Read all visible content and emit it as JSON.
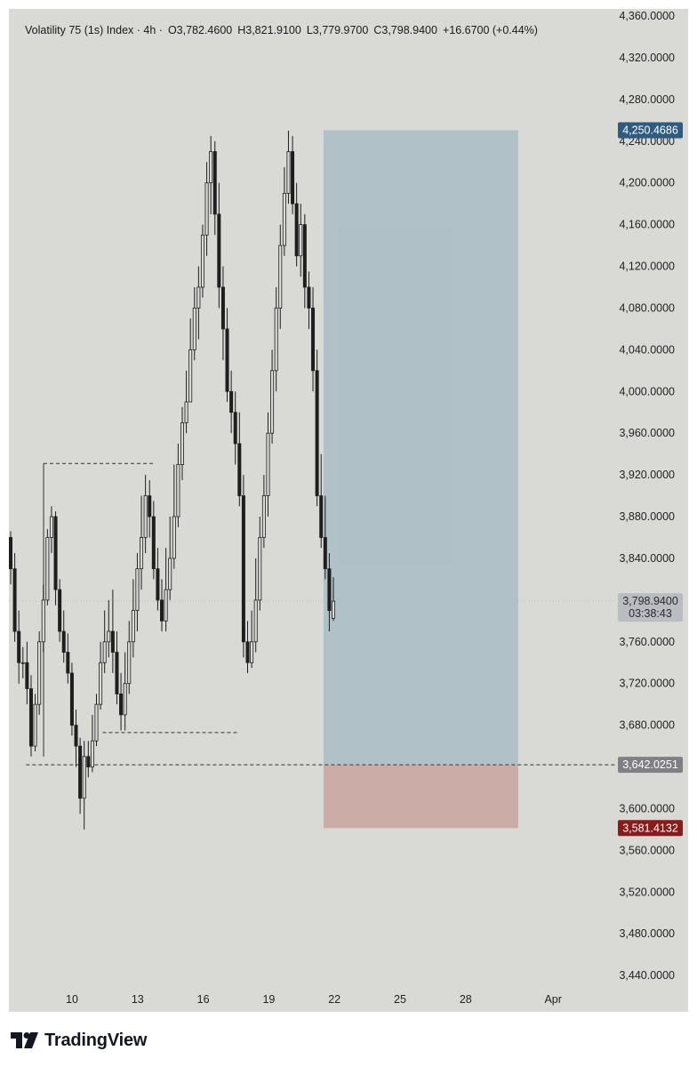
{
  "header": {
    "symbol": "Volatility 75 (1s) Index · 4h ·",
    "open": "O3,782.4600",
    "high": "H3,821.9100",
    "low": "L3,779.9700",
    "close": "C3,798.9400",
    "change": "+16.6700 (+0.44%)"
  },
  "footer": {
    "brand": "TradingView"
  },
  "colors": {
    "background": "#d9d9d5",
    "candle": "#1e1e1e",
    "profit_zone": "#a8bcc4",
    "loss_zone": "#c9a6a2",
    "target_label": "#2e5b80",
    "stop_label": "#8b1a1a",
    "entry_label": "#7f7f84",
    "price_label": "#b9bcc3"
  },
  "chart_data": {
    "type": "candlestick",
    "instrument": "Volatility 75 (1s) Index",
    "timeframe": "4h",
    "ylim": [
      3420,
      4370
    ],
    "y_ticks": [
      "4,360.0000",
      "4,320.0000",
      "4,280.0000",
      "4,240.0000",
      "4,200.0000",
      "4,160.0000",
      "4,120.0000",
      "4,080.0000",
      "4,040.0000",
      "4,000.0000",
      "3,960.0000",
      "3,920.0000",
      "3,880.0000",
      "3,840.0000",
      "3,760.0000",
      "3,720.0000",
      "3,680.0000",
      "3,600.0000",
      "3,560.0000",
      "3,520.0000",
      "3,480.0000",
      "3,440.0000"
    ],
    "y_tick_values": [
      4360,
      4320,
      4280,
      4240,
      4200,
      4160,
      4120,
      4080,
      4040,
      4000,
      3960,
      3920,
      3880,
      3840,
      3760,
      3720,
      3680,
      3600,
      3560,
      3520,
      3480,
      3440
    ],
    "x_ticks": [
      "10",
      "13",
      "16",
      "19",
      "22",
      "25",
      "28",
      "Apr"
    ],
    "x_tick_days": [
      10,
      13,
      16,
      19,
      22,
      25,
      28,
      32
    ],
    "current_price": {
      "price": 3798.94,
      "label": "3,798.9400",
      "countdown": "03:38:43"
    },
    "position": {
      "entry": 3642.0251,
      "entry_label": "3,642.0251",
      "target": 4250.4686,
      "target_label": "4,250.4686",
      "stop": 3581.4132,
      "stop_label": "3,581.4132",
      "start_day": 21.5,
      "end_day": 30.4
    },
    "levels": [
      {
        "price": 3931,
        "from_day": 8.7,
        "to_day": 13.8
      },
      {
        "price": 3673,
        "from_day": 11.4,
        "to_day": 17.6
      },
      {
        "price": 3642.0251,
        "from_day": 7.9,
        "to_day": 30.4
      }
    ],
    "candles_ohlc": [
      [
        3860,
        3830,
        3866,
        3815
      ],
      [
        3830,
        3770,
        3845,
        3760
      ],
      [
        3770,
        3740,
        3790,
        3720
      ],
      [
        3740,
        3740,
        3755,
        3725
      ],
      [
        3740,
        3715,
        3760,
        3700
      ],
      [
        3715,
        3660,
        3728,
        3650
      ],
      [
        3660,
        3700,
        3710,
        3655
      ],
      [
        3700,
        3760,
        3770,
        3690
      ],
      [
        3760,
        3800,
        3815,
        3750
      ],
      [
        3800,
        3860,
        3868,
        3795
      ],
      [
        3860,
        3880,
        3890,
        3845
      ],
      [
        3880,
        3810,
        3885,
        3795
      ],
      [
        3810,
        3770,
        3820,
        3760
      ],
      [
        3770,
        3750,
        3790,
        3740
      ],
      [
        3750,
        3730,
        3768,
        3720
      ],
      [
        3730,
        3680,
        3740,
        3670
      ],
      [
        3680,
        3660,
        3695,
        3640
      ],
      [
        3660,
        3610,
        3668,
        3595
      ],
      [
        3610,
        3650,
        3665,
        3580
      ],
      [
        3650,
        3640,
        3665,
        3630
      ],
      [
        3640,
        3665,
        3690,
        3635
      ],
      [
        3665,
        3700,
        3710,
        3660
      ],
      [
        3700,
        3740,
        3760,
        3695
      ],
      [
        3740,
        3760,
        3790,
        3730
      ],
      [
        3760,
        3770,
        3800,
        3745
      ],
      [
        3770,
        3750,
        3810,
        3730
      ],
      [
        3750,
        3710,
        3770,
        3700
      ],
      [
        3710,
        3690,
        3730,
        3675
      ],
      [
        3690,
        3720,
        3750,
        3675
      ],
      [
        3720,
        3760,
        3780,
        3710
      ],
      [
        3760,
        3790,
        3820,
        3745
      ],
      [
        3790,
        3830,
        3845,
        3770
      ],
      [
        3830,
        3860,
        3900,
        3810
      ],
      [
        3860,
        3900,
        3920,
        3845
      ],
      [
        3900,
        3880,
        3915,
        3860
      ],
      [
        3880,
        3830,
        3895,
        3820
      ],
      [
        3830,
        3800,
        3850,
        3790
      ],
      [
        3800,
        3780,
        3820,
        3770
      ],
      [
        3780,
        3810,
        3850,
        3770
      ],
      [
        3810,
        3840,
        3880,
        3800
      ],
      [
        3840,
        3880,
        3930,
        3830
      ],
      [
        3880,
        3930,
        3950,
        3870
      ],
      [
        3930,
        3970,
        3985,
        3915
      ],
      [
        3970,
        3990,
        4020,
        3960
      ],
      [
        3990,
        4040,
        4070,
        4000
      ],
      [
        4040,
        4080,
        4100,
        4030
      ],
      [
        4080,
        4100,
        4120,
        4050
      ],
      [
        4100,
        4150,
        4160,
        4090
      ],
      [
        4150,
        4200,
        4220,
        4130
      ],
      [
        4200,
        4230,
        4245,
        4170
      ],
      [
        4230,
        4170,
        4240,
        4150
      ],
      [
        4170,
        4100,
        4200,
        4080
      ],
      [
        4100,
        4060,
        4120,
        4030
      ],
      [
        4060,
        4000,
        4080,
        3990
      ],
      [
        4000,
        3980,
        4020,
        3960
      ],
      [
        3980,
        3950,
        4000,
        3930
      ],
      [
        3950,
        3900,
        3980,
        3890
      ],
      [
        3900,
        3760,
        3920,
        3745
      ],
      [
        3760,
        3740,
        3780,
        3730
      ],
      [
        3740,
        3760,
        3790,
        3735
      ],
      [
        3760,
        3800,
        3840,
        3750
      ],
      [
        3800,
        3860,
        3880,
        3790
      ],
      [
        3860,
        3900,
        3920,
        3850
      ],
      [
        3900,
        3960,
        3980,
        3880
      ],
      [
        3960,
        4020,
        4040,
        3950
      ],
      [
        4020,
        4080,
        4100,
        4000
      ],
      [
        4080,
        4140,
        4160,
        4060
      ],
      [
        4140,
        4190,
        4215,
        4130
      ],
      [
        4190,
        4230,
        4250,
        4180
      ],
      [
        4230,
        4180,
        4245,
        4170
      ],
      [
        4180,
        4130,
        4200,
        4120
      ],
      [
        4130,
        4160,
        4180,
        4110
      ],
      [
        4160,
        4100,
        4170,
        4080
      ],
      [
        4100,
        4080,
        4115,
        4060
      ],
      [
        4080,
        4020,
        4100,
        4000
      ],
      [
        4020,
        3900,
        4040,
        3890
      ],
      [
        3900,
        3860,
        3940,
        3850
      ],
      [
        3860,
        3830,
        3900,
        3820
      ],
      [
        3830,
        3790,
        3845,
        3770
      ],
      [
        3782.46,
        3798.94,
        3821.91,
        3779.97
      ]
    ]
  }
}
